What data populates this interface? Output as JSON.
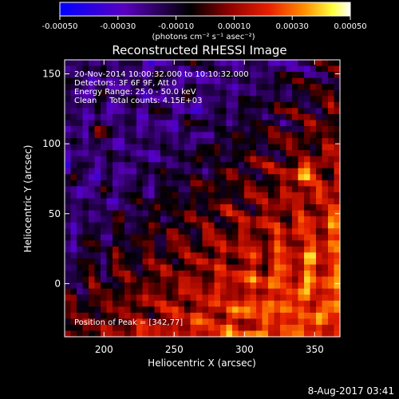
{
  "chart_data": {
    "type": "heatmap",
    "title": "Reconstructed RHESSI Image",
    "xlabel": "Heliocentric X (arcsec)",
    "ylabel": "Heliocentric Y (arcsec)",
    "xlim": [
      172,
      368
    ],
    "ylim": [
      -38,
      160
    ],
    "x_ticks": [
      200,
      250,
      300,
      350
    ],
    "y_ticks": [
      0,
      50,
      100,
      150
    ],
    "colorbar": {
      "label": "(photons cm⁻² s⁻¹ asec⁻²)",
      "range": [
        -0.0005,
        0.0005
      ],
      "tick_labels": [
        "-0.00050",
        "-0.00030",
        "-0.00010",
        "0.00010",
        "0.00030",
        "0.00050"
      ],
      "tick_values": [
        -0.0005,
        -0.0003,
        -0.0001,
        0.0001,
        0.0003,
        0.0005
      ],
      "colors": [
        "#0000ff",
        "#4b0082",
        "#000000",
        "#8b0000",
        "#e02000",
        "#ff8c00",
        "#ffff00",
        "#ffffff"
      ]
    },
    "annotations": [
      "20-Nov-2014 10:00:32.000 to 10:10:32.000",
      "Detectors: 3F 6F 9F, Att 0",
      "Energy Range: 25.0 - 50.0 keV",
      "Clean     Total counts: 4.15E+03"
    ],
    "peak_label": "Position of Peak = [342,77]",
    "peak": {
      "x": 342,
      "y": 77
    },
    "grid": false
  },
  "footer": {
    "timestamp": "8-Aug-2017 03:41"
  }
}
